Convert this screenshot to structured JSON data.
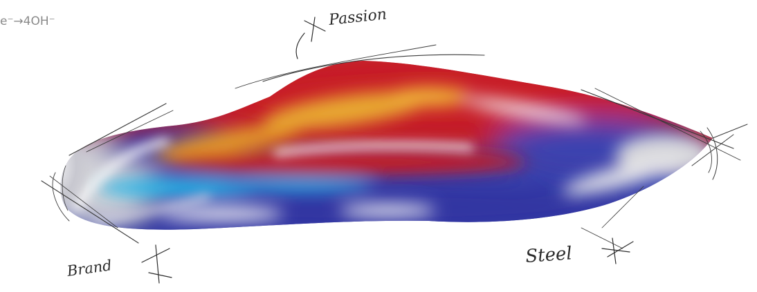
{
  "annotations": {
    "formula": "e⁻→4OH⁻",
    "passion": "Passion",
    "brand": "Brand",
    "steel": "Steel"
  },
  "colors": {
    "background": "#ffffff",
    "red": "#c8202a",
    "orange": "#e8a428",
    "blue": "#3840a8",
    "cyan": "#2ab8e8",
    "silver": "#d8d8dc",
    "ink": "#2b2b2b"
  }
}
